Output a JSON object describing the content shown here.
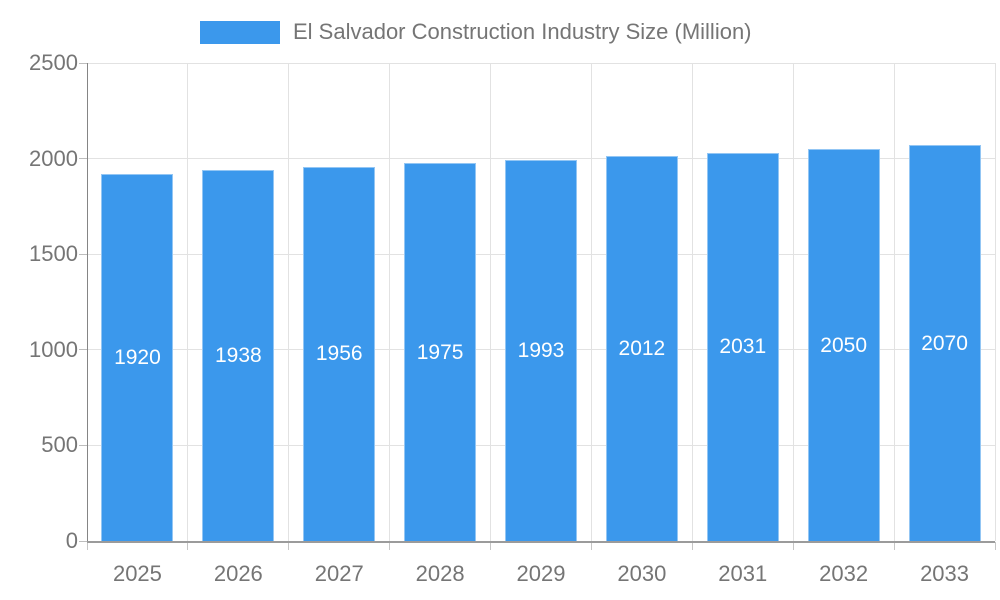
{
  "chart_data": {
    "type": "bar",
    "title": "El Salvador Construction Industry Size (Million)",
    "legend": [
      "El Salvador Construction Industry Size (Million)"
    ],
    "legend_position": "top",
    "categories": [
      "2025",
      "2026",
      "2027",
      "2028",
      "2029",
      "2030",
      "2031",
      "2032",
      "2033"
    ],
    "values": [
      1920,
      1938,
      1956,
      1975,
      1993,
      2012,
      2031,
      2050,
      2070
    ],
    "xlabel": "",
    "ylabel": "",
    "ylim": [
      0,
      2500
    ],
    "yticks": [
      0,
      500,
      1000,
      1500,
      2000,
      2500
    ],
    "grid": true,
    "value_labels_inside_bars": true,
    "colors": {
      "bar": "#3B98EC",
      "bar_value_text": "#FFFFFF",
      "axis_text": "#757575",
      "gridline": "#E2E2E2",
      "axis_line": "#8A8A8A"
    }
  }
}
